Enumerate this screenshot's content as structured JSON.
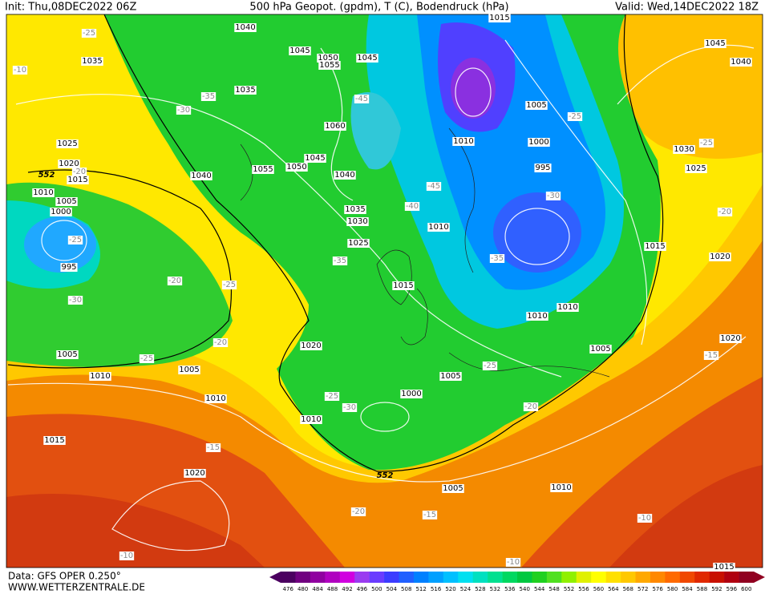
{
  "header": {
    "init": "Init: Thu,08DEC2022 06Z",
    "title": "500 hPa Geopot. (gpdm), T (C), Bodendruck (hPa)",
    "valid": "Valid: Wed,14DEC2022 18Z"
  },
  "map": {
    "pressure_labels": [
      "1040",
      "1045",
      "1050",
      "1055",
      "1045",
      "1035",
      "1035",
      "1060",
      "1045",
      "1055",
      "1050",
      "1040",
      "1040",
      "1025",
      "1020",
      "1015",
      "1010",
      "1005",
      "1000",
      "995",
      "1035",
      "1030",
      "1025",
      "1015",
      "1005",
      "1010",
      "1000",
      "995",
      "1010",
      "1015",
      "1015",
      "1010",
      "1010",
      "1005",
      "1020",
      "1005",
      "1010",
      "1005",
      "1010",
      "1010",
      "1005",
      "1000",
      "1015",
      "1020",
      "1005",
      "1010",
      "1045",
      "1040",
      "1030",
      "1025",
      "1020",
      "1020",
      "1015"
    ],
    "temperature_labels": [
      "-25",
      "-10",
      "-30",
      "-35",
      "-45",
      "-20",
      "-25",
      "-30",
      "-20",
      "-25",
      "-20",
      "-25",
      "-35",
      "-40",
      "-45",
      "-25",
      "-25",
      "-30",
      "-35",
      "-20",
      "-15",
      "-25",
      "-25",
      "-30",
      "-20",
      "-15",
      "-20",
      "-15",
      "-10",
      "-10",
      "-10"
    ],
    "height_labels": [
      "552",
      "552"
    ]
  },
  "footer": {
    "data": "Data: GFS OPER 0.250°",
    "site": "WWW.WETTERZENTRALE.DE"
  },
  "scale": {
    "labels": [
      476,
      480,
      484,
      488,
      492,
      496,
      500,
      504,
      508,
      512,
      516,
      520,
      524,
      528,
      532,
      536,
      540,
      544,
      548,
      552,
      556,
      560,
      564,
      568,
      572,
      576,
      580,
      584,
      588,
      592,
      596,
      600
    ],
    "colors": [
      "#4b0060",
      "#700080",
      "#9000a0",
      "#b000c0",
      "#d000e0",
      "#9a3cf0",
      "#6a3cff",
      "#3c3cff",
      "#2060ff",
      "#0080ff",
      "#00a0ff",
      "#00c0ff",
      "#00e0f0",
      "#00e0c0",
      "#00e090",
      "#00d860",
      "#00c840",
      "#20d020",
      "#50e020",
      "#90f000",
      "#e0f000",
      "#ffff00",
      "#ffe000",
      "#ffc800",
      "#ffa800",
      "#ff8800",
      "#ff6a00",
      "#f04800",
      "#e02800",
      "#c81000",
      "#b00010",
      "#900020"
    ]
  }
}
